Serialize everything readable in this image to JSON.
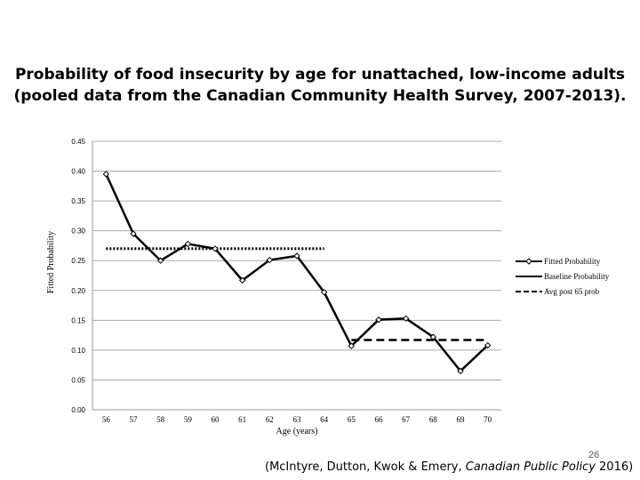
{
  "slide": {
    "title_line1": "Probability of food insecurity by age for unattached, low-income adults",
    "title_line2": "(pooled data from the Canadian Community Health Survey, 2007-2013).",
    "page_number": "26",
    "citation_before": "(McIntyre, Dutton, Kwok & Emery, ",
    "citation_journal": "Canadian Public Policy",
    "citation_after": " 2016)"
  },
  "chart_data": {
    "type": "line",
    "xlabel": "Age (years)",
    "ylabel": "Fitted Probability",
    "categories": [
      "56",
      "57",
      "58",
      "59",
      "60",
      "61",
      "62",
      "63",
      "64",
      "65",
      "66",
      "67",
      "68",
      "69",
      "70"
    ],
    "x": [
      56,
      57,
      58,
      59,
      60,
      61,
      62,
      63,
      64,
      65,
      66,
      67,
      68,
      69,
      70
    ],
    "ylim": [
      0,
      0.45
    ],
    "yticks": [
      0.0,
      0.05,
      0.1,
      0.15,
      0.2,
      0.25,
      0.3,
      0.35,
      0.4,
      0.45
    ],
    "ytick_labels": [
      "0.00",
      "0.05",
      "0.10",
      "0.15",
      "0.20",
      "0.25",
      "0.30",
      "0.35",
      "0.40",
      "0.45"
    ],
    "grid": true,
    "legend_position": "right",
    "series": [
      {
        "name": "Fitted Probability",
        "style": "solid-markers",
        "values": [
          0.395,
          0.295,
          0.25,
          0.278,
          0.27,
          0.217,
          0.251,
          0.258,
          0.197,
          0.107,
          0.151,
          0.153,
          0.122,
          0.065,
          0.108
        ]
      },
      {
        "name": "Baseline Probability",
        "style": "dotted",
        "x": [
          56,
          64
        ],
        "values": [
          0.27,
          0.27
        ]
      },
      {
        "name": "Avg post 65 prob",
        "style": "dashed",
        "x": [
          65,
          70
        ],
        "values": [
          0.117,
          0.117
        ]
      }
    ]
  }
}
